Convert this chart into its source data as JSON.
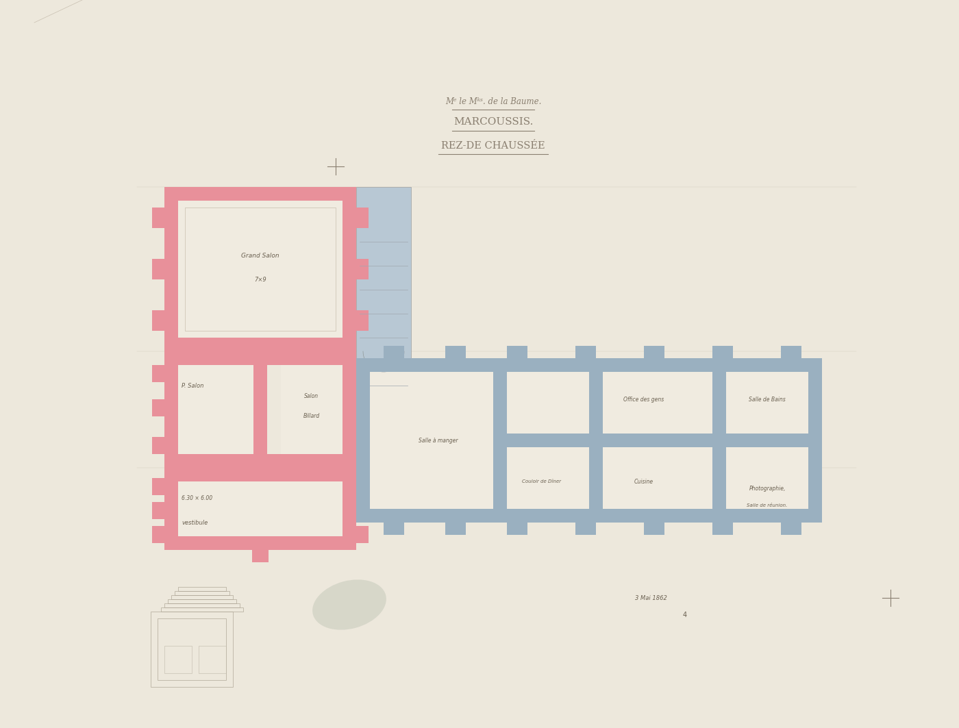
{
  "background_color": "#ede8dc",
  "title_line1": "Mᵉ le Mᵏˢ. de la Baume.",
  "title_line2": "MARCOUSSIS.",
  "title_line3": "REZ-DE CHAUSSÉE",
  "pink_wall_color": "#e8909a",
  "blue_wall_color": "#9ab0c0",
  "room_bg": "#f0ebe0",
  "stair_bg": "#b8c8d4",
  "text_color": "#6a6050",
  "line_color": "#8a7f70",
  "date_text": "3 Mai 1862"
}
